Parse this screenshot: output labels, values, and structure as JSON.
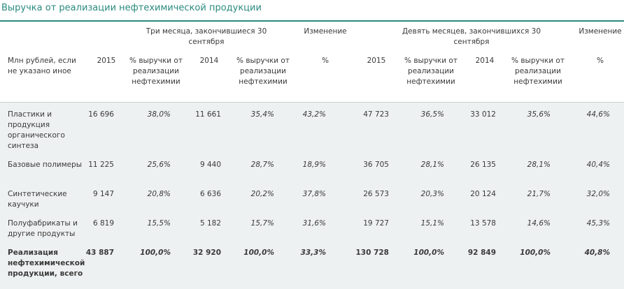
{
  "title": "Выручка от реализации нефтехимической продукции",
  "header": {
    "group_3m": "Три месяца, закончившиеся 30 сентября",
    "change1": "Изменение",
    "group_9m": "Девять месяцев, закончившихся 30 сентября",
    "change2": "Изменение",
    "rowlabel": "Млн рублей, если не указано иное",
    "y2015a": "2015",
    "pct_rev_a": "% выручки от реализации нефтехимии",
    "y2014a": "2014",
    "pct_rev_b": "% выручки от реализации нефтехимии",
    "pct1": "%",
    "y2015b": "2015",
    "pct_rev_c": "% выручки от реализации нефтехимии",
    "y2014b": "2014",
    "pct_rev_d": "% выручки от реализации нефтехимии",
    "pct2": "%"
  },
  "rows": [
    {
      "label": "Пластики и продукция органического синтеза",
      "v2015a": "16 696",
      "p2015a": "38,0%",
      "v2014a": "11 661",
      "p2014a": "35,4%",
      "chg1": "43,2%",
      "v2015b": "47 723",
      "p2015b": "36,5%",
      "v2014b": "33 012",
      "p2014b": "35,6%",
      "chg2": "44,6%"
    },
    {
      "label": "Базовые полимеры",
      "v2015a": "11 225",
      "p2015a": "25,6%",
      "v2014a": "9 440",
      "p2014a": "28,7%",
      "chg1": "18,9%",
      "v2015b": "36 705",
      "p2015b": "28,1%",
      "v2014b": "26 135",
      "p2014b": "28,1%",
      "chg2": "40,4%"
    },
    {
      "label": "Синтетические каучуки",
      "v2015a": "9 147",
      "p2015a": "20,8%",
      "v2014a": "6 636",
      "p2014a": "20,2%",
      "chg1": "37,8%",
      "v2015b": "26 573",
      "p2015b": "20,3%",
      "v2014b": "20 124",
      "p2014b": "21,7%",
      "chg2": "32,0%"
    },
    {
      "label": "Полуфабрикаты и другие продукты",
      "v2015a": "6 819",
      "p2015a": "15,5%",
      "v2014a": "5 182",
      "p2014a": "15,7%",
      "chg1": "31,6%",
      "v2015b": "19 727",
      "p2015b": "15,1%",
      "v2014b": "13 578",
      "p2014b": "14,6%",
      "chg2": "45,3%"
    },
    {
      "label": "Реализация нефтехимической продукции, всего",
      "v2015a": "43 887",
      "p2015a": "100,0%",
      "v2014a": "32 920",
      "p2014a": "100,0%",
      "chg1": "33,3%",
      "v2015b": "130 728",
      "p2015b": "100,0%",
      "v2014b": "92 849",
      "p2014b": "100,0%",
      "chg2": "40,8%"
    }
  ]
}
